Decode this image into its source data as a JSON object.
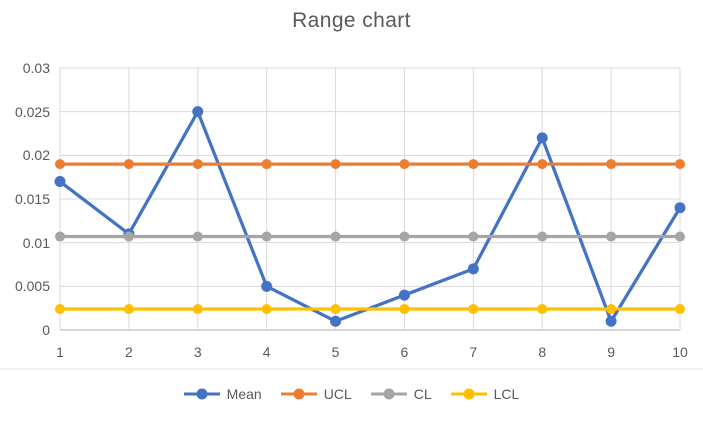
{
  "chart": {
    "title": "Range chart"
  },
  "colors": {
    "mean": "#4472C4",
    "ucl": "#ED7D31",
    "cl": "#A5A5A5",
    "lcl": "#FFC000",
    "gridline": "#D9D9D9",
    "axis_line": "#BFBFBF",
    "label_text": "#595959",
    "title_text": "#595959",
    "worksheet_line": "#E8E8E8",
    "background": "#FFFFFF"
  },
  "chart_data": {
    "type": "line",
    "title": "Range chart",
    "x": [
      1,
      2,
      3,
      4,
      5,
      6,
      7,
      8,
      9,
      10
    ],
    "x_tick_labels": [
      "1",
      "2",
      "3",
      "4",
      "5",
      "6",
      "7",
      "8",
      "9",
      "10"
    ],
    "xlabel": "",
    "ylabel": "",
    "ylim": [
      0,
      0.03
    ],
    "y_ticks": [
      0,
      0.005,
      0.01,
      0.015,
      0.02,
      0.025,
      0.03
    ],
    "y_tick_labels": [
      "0",
      "0.005",
      "0.01",
      "0.015",
      "0.02",
      "0.025",
      "0.03"
    ],
    "grid": true,
    "legend_position": "bottom",
    "legend": [
      "Mean",
      "UCL",
      "CL",
      "LCL"
    ],
    "series": [
      {
        "name": "Mean",
        "color": "#4472C4",
        "marker": "circle",
        "values": [
          0.017,
          0.011,
          0.025,
          0.005,
          0.001,
          0.004,
          0.007,
          0.022,
          0.001,
          0.014
        ]
      },
      {
        "name": "UCL",
        "color": "#ED7D31",
        "marker": "circle",
        "values": [
          0.019,
          0.019,
          0.019,
          0.019,
          0.019,
          0.019,
          0.019,
          0.019,
          0.019,
          0.019
        ]
      },
      {
        "name": "CL",
        "color": "#A5A5A5",
        "marker": "circle",
        "values": [
          0.0107,
          0.0107,
          0.0107,
          0.0107,
          0.0107,
          0.0107,
          0.0107,
          0.0107,
          0.0107,
          0.0107
        ]
      },
      {
        "name": "LCL",
        "color": "#FFC000",
        "marker": "circle",
        "values": [
          0.0024,
          0.0024,
          0.0024,
          0.0024,
          0.0024,
          0.0024,
          0.0024,
          0.0024,
          0.0024,
          0.0024
        ]
      }
    ]
  }
}
